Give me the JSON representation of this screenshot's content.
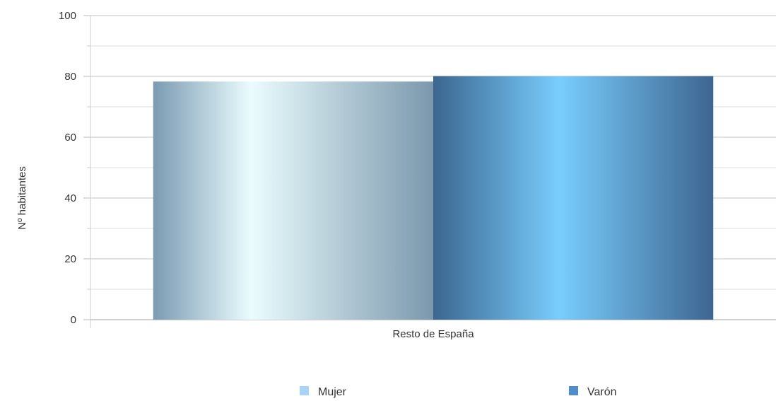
{
  "chart_data": {
    "type": "bar",
    "title": "",
    "xlabel": "",
    "ylabel": "Nº habitantes",
    "categories": [
      "Resto de España"
    ],
    "series": [
      {
        "name": "Mujer",
        "values": [
          78.3
        ],
        "color": "#a9d4f5"
      },
      {
        "name": "Varón",
        "values": [
          80.1
        ],
        "color": "#4f8ec9"
      }
    ],
    "ylim": [
      0,
      100
    ],
    "yticks": [
      0,
      20,
      40,
      60,
      80,
      100
    ],
    "grid": true,
    "legend_position": "bottom"
  }
}
